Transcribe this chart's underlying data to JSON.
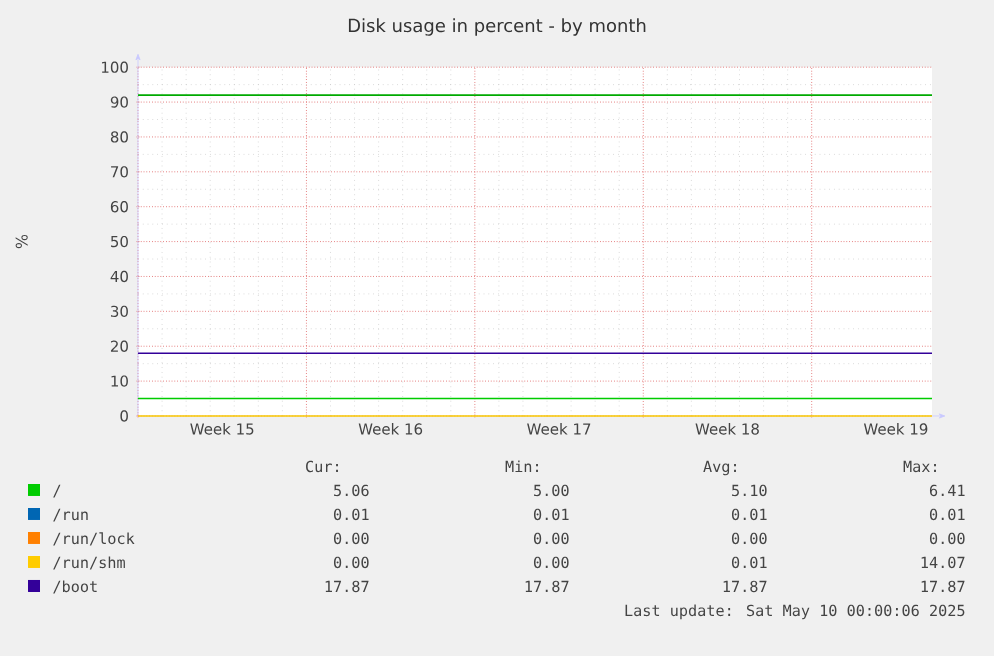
{
  "chart_data": {
    "type": "line",
    "title": "Disk usage in percent - by month",
    "ylabel": "%",
    "x": [
      "2025-04-07",
      "2025-04-21",
      "2025-05-10"
    ],
    "series": [
      {
        "name": "/",
        "color": "#00cc00",
        "values": [
          5,
          5,
          5
        ]
      },
      {
        "name": "/run",
        "color": "#0066b3",
        "values": [
          null,
          null,
          null
        ]
      },
      {
        "name": "/run/lock",
        "color": "#ff8000",
        "values": [
          null,
          null,
          null
        ]
      },
      {
        "name": "/run/shm",
        "color": "#ffcc00",
        "values": [
          0,
          0,
          0
        ]
      },
      {
        "name": "/boot",
        "color": "#330099",
        "values": [
          18,
          18,
          18
        ]
      }
    ],
    "xlim": [
      "2025-04-07",
      "2025-05-10"
    ],
    "xticks": [
      {
        "value": "2025-04-07",
        "label": null
      },
      {
        "value": "2025-04-10T12:00",
        "label": "Week 15"
      },
      {
        "value": "2025-04-14",
        "label": null
      },
      {
        "value": "2025-04-17T12:00",
        "label": "Week 16"
      },
      {
        "value": "2025-04-21",
        "label": null
      },
      {
        "value": "2025-04-24T12:00",
        "label": "Week 17"
      },
      {
        "value": "2025-04-28",
        "label": null
      },
      {
        "value": "2025-05-01T12:00",
        "label": "Week 18"
      },
      {
        "value": "2025-05-05",
        "label": null
      },
      {
        "value": "2025-05-08T12:00",
        "label": "Week 19"
      }
    ],
    "ylim": [
      0,
      100
    ],
    "yticks": [
      0,
      10,
      20,
      30,
      40,
      50,
      60,
      70,
      80,
      90,
      100
    ],
    "ref_lines": [
      {
        "axis": "y",
        "value": 92,
        "color": "#00aa00"
      }
    ],
    "grid": true,
    "legend": "bottom",
    "annotations": [
      "Cur:",
      "Min:",
      "Avg:",
      "Max:",
      "5.06",
      "5.00",
      "5.10",
      "6.41",
      "0.01",
      "0.01",
      "0.01",
      "0.01",
      "0.00",
      "0.00",
      "0.00",
      "0.00",
      "0.00",
      "0.00",
      "0.01",
      "14.07",
      "17.87",
      "17.87",
      "17.87",
      "17.87",
      "Last update:  Sat May 10 00:00:06 2025"
    ]
  }
}
